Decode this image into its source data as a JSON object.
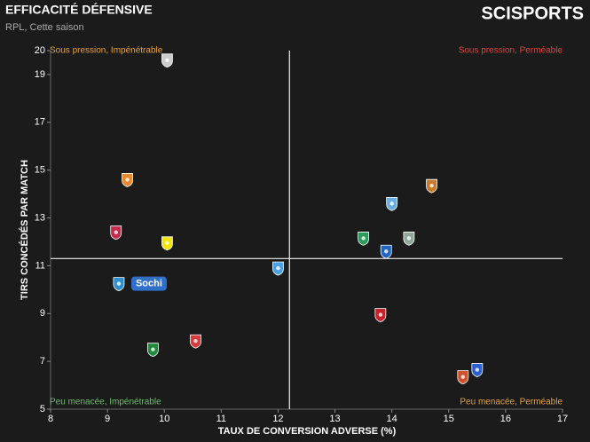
{
  "chart_data": {
    "type": "scatter",
    "title": "EFFICACITÉ DÉFENSIVE",
    "subtitle": "RPL, Cette saison",
    "brand": "SCISPORTS",
    "x_label": "TAUX DE CONVERSION ADVERSE (%)",
    "y_label": "TIRS CONCÉDÉS PAR MATCH",
    "xlim": [
      8,
      17
    ],
    "ylim": [
      5,
      20
    ],
    "xticks": [
      8,
      9,
      10,
      11,
      12,
      13,
      14,
      15,
      16,
      17
    ],
    "yticks": [
      5,
      7,
      9,
      11,
      13,
      15,
      17,
      19,
      20
    ],
    "reference_lines": {
      "x": 12.2,
      "y": 11.3
    },
    "quadrants": [
      {
        "label": "Sous pression, Impénétrable",
        "color": "#e8a33d"
      },
      {
        "label": "Sous pression, Perméable",
        "color": "#e0443c"
      },
      {
        "label": "Peu menacée, Impénétrable",
        "color": "#6cbf6c"
      },
      {
        "label": "Peu menacée, Perméable",
        "color": "#e8a33d"
      }
    ],
    "x": [
      10.05,
      9.35,
      9.15,
      10.05,
      9.2,
      12.0,
      10.55,
      9.8,
      13.5,
      14.0,
      14.3,
      13.9,
      14.7,
      13.8,
      15.25,
      15.5
    ],
    "y": [
      19.6,
      14.6,
      12.4,
      11.95,
      10.25,
      10.9,
      7.85,
      7.5,
      12.15,
      13.6,
      12.15,
      11.6,
      14.35,
      8.95,
      6.35,
      6.65
    ],
    "colors": [
      "#cccccc",
      "#e8892c",
      "#c8284a",
      "#f2e600",
      "#2f8fcf",
      "#4aa0e0",
      "#d63a3a",
      "#1f8a3a",
      "#2e9a5c",
      "#6aaee0",
      "#8fa89a",
      "#2266c0",
      "#c77a2a",
      "#c8202a",
      "#d0502a",
      "#2a5fd0"
    ],
    "highlight": {
      "index": 4,
      "label": "Sochi",
      "color": "#2f6fc8"
    }
  }
}
